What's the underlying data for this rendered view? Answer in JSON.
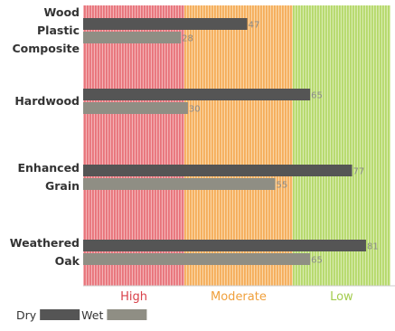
{
  "chart_data": {
    "type": "bar",
    "orientation": "horizontal",
    "categories": [
      [
        "Wood",
        "Plastic",
        "Composite"
      ],
      [
        "Hardwood"
      ],
      [
        "Enhanced",
        "Grain"
      ],
      [
        "Weathered",
        "Oak"
      ]
    ],
    "series": [
      {
        "name": "Dry",
        "values": [
          47,
          65,
          77,
          81
        ],
        "color": "#555555"
      },
      {
        "name": "Wet",
        "values": [
          28,
          30,
          55,
          65
        ],
        "color": "#8f8e84"
      }
    ],
    "xlim": [
      0,
      88
    ],
    "zones": [
      {
        "label": "High",
        "from": 0,
        "to": 29,
        "fill": "#e8737a",
        "stripe": "#f4b3b7",
        "text_color": "#d9414a"
      },
      {
        "label": "Moderate",
        "from": 29,
        "to": 60,
        "fill": "#f5ad5a",
        "stripe": "#fad6a6",
        "text_color": "#f0a03c"
      },
      {
        "label": "Low",
        "from": 60,
        "to": 88,
        "fill": "#b5d96a",
        "stripe": "#d9ecb0",
        "text_color": "#a3cc4e"
      }
    ],
    "legend": {
      "placement": "bottom-left"
    }
  }
}
